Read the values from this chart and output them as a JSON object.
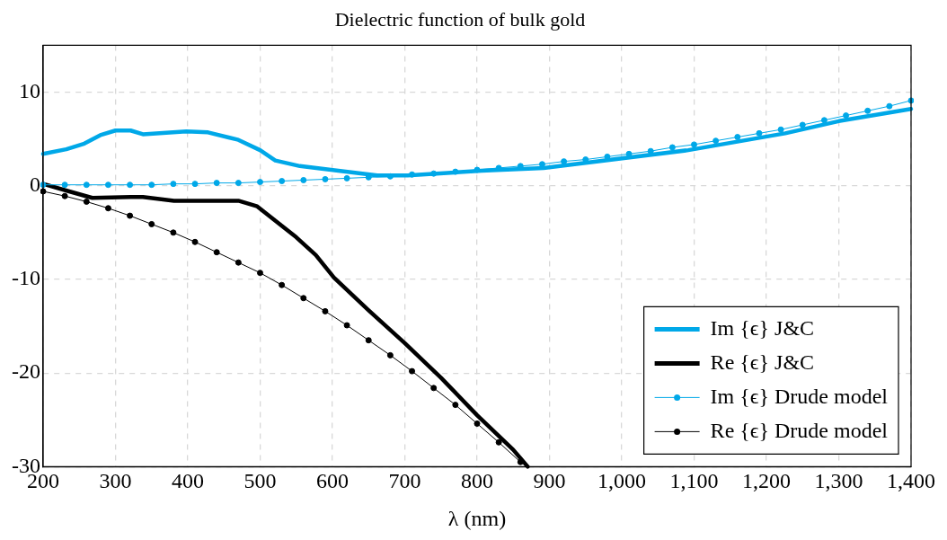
{
  "chart_data": {
    "type": "line",
    "title": "Dielectric function of bulk gold",
    "xlabel": "λ (nm)",
    "xlim": [
      200,
      1400
    ],
    "ylim": [
      -30,
      15
    ],
    "xticks": [
      200,
      300,
      400,
      500,
      600,
      700,
      800,
      900,
      {
        "value": 1000,
        "label": "1,000"
      },
      {
        "value": 1100,
        "label": "1,100"
      },
      {
        "value": 1200,
        "label": "1,200"
      },
      {
        "value": 1300,
        "label": "1,300"
      },
      {
        "value": 1400,
        "label": "1,400"
      }
    ],
    "yticks": [
      -30,
      -20,
      -10,
      0,
      10
    ],
    "grid": true,
    "legend": "bottom right",
    "series": [
      {
        "name": "Im {ϵ} J&C",
        "color": "#00a8e8",
        "marker": "none",
        "x": [
          200,
          232,
          257,
          279,
          300,
          321,
          338,
          398,
          428,
          470,
          500,
          521,
          555,
          598,
          662,
          704,
          806,
          892,
          1092,
          1226,
          1300,
          1400
        ],
        "values": [
          3.4,
          3.9,
          4.5,
          5.4,
          5.9,
          5.9,
          5.5,
          5.8,
          5.7,
          4.9,
          3.8,
          2.7,
          2.1,
          1.7,
          1.1,
          1.1,
          1.6,
          1.9,
          3.8,
          5.6,
          6.9,
          8.2
        ]
      },
      {
        "name": "Re {ϵ} J&C",
        "color": "#000000",
        "marker": "none",
        "x": [
          200,
          236,
          268,
          321,
          338,
          381,
          470,
          496,
          550,
          577,
          602,
          650,
          700,
          750,
          800,
          850,
          870
        ],
        "values": [
          0.2,
          -0.6,
          -1.3,
          -1.2,
          -1.2,
          -1.6,
          -1.6,
          -2.2,
          -5.5,
          -7.4,
          -9.8,
          -13.3,
          -16.8,
          -20.5,
          -24.5,
          -28.2,
          -30
        ]
      },
      {
        "name": "Im {ϵ} Drude model",
        "color": "#00a8e8",
        "marker": "circle",
        "x": [
          200,
          230,
          260,
          290,
          320,
          350,
          380,
          410,
          440,
          470,
          500,
          530,
          560,
          590,
          620,
          650,
          680,
          710,
          740,
          770,
          800,
          830,
          860,
          890,
          920,
          950,
          980,
          1010,
          1040,
          1070,
          1100,
          1130,
          1160,
          1190,
          1220,
          1250,
          1280,
          1310,
          1340,
          1370,
          1400
        ],
        "values": [
          0.1,
          0.1,
          0.1,
          0.1,
          0.1,
          0.1,
          0.2,
          0.2,
          0.3,
          0.3,
          0.4,
          0.5,
          0.6,
          0.7,
          0.8,
          0.9,
          1.0,
          1.2,
          1.3,
          1.5,
          1.7,
          1.9,
          2.1,
          2.3,
          2.6,
          2.8,
          3.1,
          3.4,
          3.7,
          4.1,
          4.4,
          4.8,
          5.2,
          5.6,
          6.0,
          6.5,
          7.0,
          7.5,
          8.0,
          8.5,
          9.1
        ]
      },
      {
        "name": "Re {ϵ} Drude model",
        "color": "#000000",
        "marker": "circle",
        "x": [
          200,
          230,
          260,
          290,
          320,
          350,
          380,
          410,
          440,
          470,
          500,
          530,
          560,
          590,
          620,
          650,
          680,
          710,
          740,
          770,
          800,
          830,
          860
        ],
        "values": [
          -0.6,
          -1.1,
          -1.7,
          -2.4,
          -3.2,
          -4.1,
          -5.0,
          -6.0,
          -7.1,
          -8.2,
          -9.3,
          -10.6,
          -12.0,
          -13.4,
          -14.9,
          -16.5,
          -18.1,
          -19.8,
          -21.6,
          -23.4,
          -25.4,
          -27.4,
          -29.5
        ]
      }
    ]
  }
}
